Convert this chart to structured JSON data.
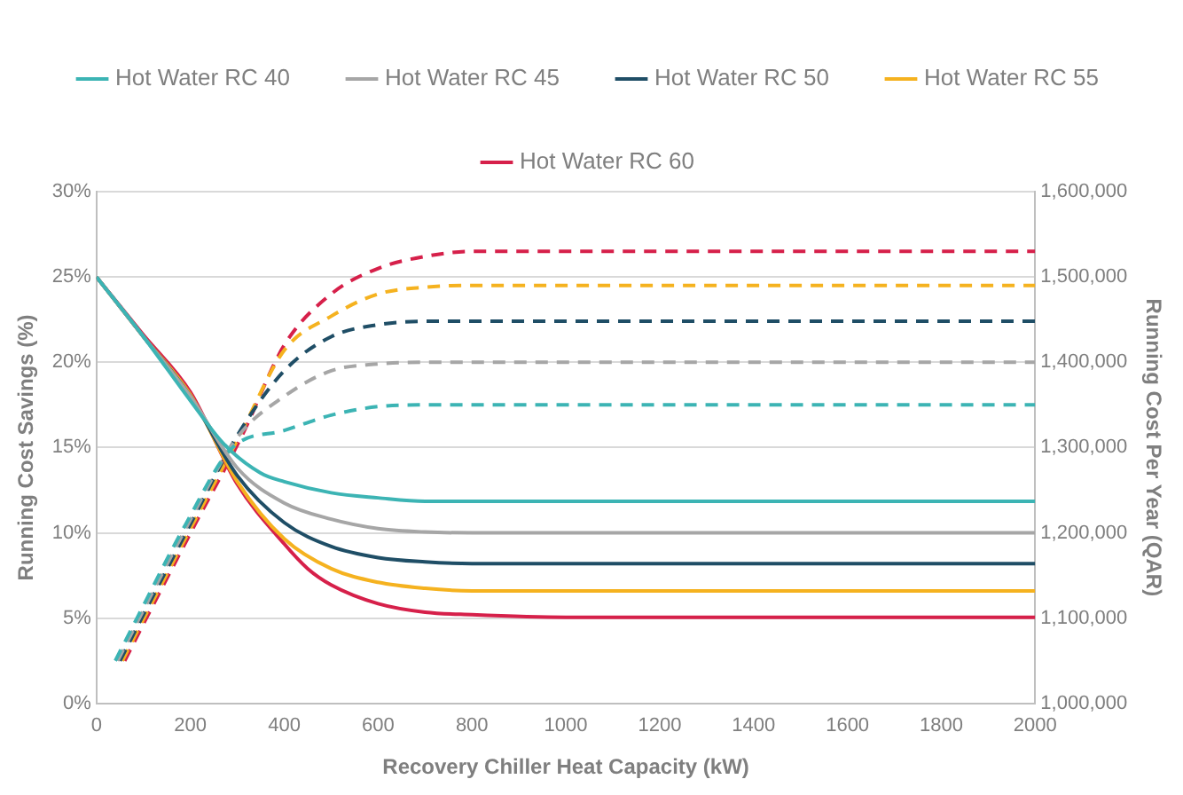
{
  "chart_data": {
    "type": "line",
    "xlabel": "Recovery Chiller Heat Capacity (kW)",
    "ylabel": "Running Cost Savings (%)",
    "y2label": "Running Cost Per Year (QAR)",
    "xlim": [
      0,
      2000
    ],
    "xticks": [
      0,
      200,
      400,
      600,
      800,
      1000,
      1200,
      1400,
      1600,
      1800,
      2000
    ],
    "ylim": [
      0,
      30
    ],
    "yticks": [
      {
        "value": 0,
        "label": "0%"
      },
      {
        "value": 5,
        "label": "5%"
      },
      {
        "value": 10,
        "label": "10%"
      },
      {
        "value": 15,
        "label": "15%"
      },
      {
        "value": 20,
        "label": "20%"
      },
      {
        "value": 25,
        "label": "25%"
      },
      {
        "value": 30,
        "label": "30%"
      }
    ],
    "y2lim": [
      1000000,
      1600000
    ],
    "y2ticks": [
      {
        "value": 1000000,
        "label": "1,000,000"
      },
      {
        "value": 1100000,
        "label": "1,100,000"
      },
      {
        "value": 1200000,
        "label": "1,200,000"
      },
      {
        "value": 1300000,
        "label": "1,300,000"
      },
      {
        "value": 1400000,
        "label": "1,400,000"
      },
      {
        "value": 1500000,
        "label": "1,500,000"
      },
      {
        "value": 1600000,
        "label": "1,600,000"
      }
    ],
    "grid": "y",
    "legend": "top",
    "marker": "none",
    "series": [
      {
        "name": "Hot Water RC 40",
        "color": "#3cb4b4",
        "axis": "y2",
        "line_style": "solid",
        "x": [
          0,
          100,
          200,
          270,
          350,
          400,
          500,
          600,
          700,
          2000
        ],
        "values": [
          1500000,
          1430000,
          1355000,
          1305000,
          1270000,
          1260000,
          1247000,
          1241000,
          1237000,
          1237000
        ]
      },
      {
        "name": "Hot Water RC 45",
        "color": "#a6a6a6",
        "axis": "y2",
        "line_style": "solid",
        "x": [
          0,
          100,
          200,
          300,
          400,
          500,
          600,
          700,
          800,
          2000
        ],
        "values": [
          1500000,
          1430000,
          1360000,
          1276000,
          1235000,
          1216000,
          1205000,
          1201000,
          1200000,
          1200000
        ]
      },
      {
        "name": "Hot Water RC 50",
        "color": "#1f4e66",
        "axis": "y2",
        "line_style": "solid",
        "x": [
          0,
          100,
          200,
          300,
          400,
          500,
          600,
          700,
          800,
          2000
        ],
        "values": [
          1500000,
          1430000,
          1360000,
          1267000,
          1212000,
          1184000,
          1171000,
          1166000,
          1164000,
          1164000
        ]
      },
      {
        "name": "Hot Water RC 55",
        "color": "#f5b21f",
        "axis": "y2",
        "line_style": "solid",
        "x": [
          0,
          100,
          200,
          300,
          400,
          500,
          600,
          700,
          800,
          2000
        ],
        "values": [
          1500000,
          1430000,
          1362000,
          1260000,
          1193000,
          1158000,
          1142000,
          1135000,
          1132000,
          1132000
        ]
      },
      {
        "name": "Hot Water RC 60",
        "color": "#d6204a",
        "axis": "y2",
        "line_style": "solid",
        "x": [
          0,
          100,
          200,
          300,
          400,
          450,
          500,
          600,
          700,
          800,
          1000,
          2000
        ],
        "values": [
          1500000,
          1432000,
          1365000,
          1257000,
          1187000,
          1158000,
          1139000,
          1117000,
          1107000,
          1104000,
          1101000,
          1101000
        ]
      },
      {
        "color": "#3cb4b4",
        "axis": "y",
        "line_style": "dashed",
        "x": [
          40,
          90,
          190,
          290,
          400,
          500,
          600,
          700,
          2000
        ],
        "values": [
          2.5,
          5.2,
          10.5,
          15.0,
          16.0,
          16.9,
          17.4,
          17.5,
          17.5
        ]
      },
      {
        "color": "#a6a6a6",
        "axis": "y",
        "line_style": "dashed",
        "x": [
          45,
          95,
          195,
          300,
          400,
          500,
          600,
          700,
          2000
        ],
        "values": [
          2.5,
          5.2,
          10.5,
          15.6,
          18.0,
          19.5,
          19.9,
          20.0,
          20.0
        ]
      },
      {
        "color": "#1f4e66",
        "axis": "y",
        "line_style": "dashed",
        "x": [
          50,
          100,
          200,
          300,
          400,
          500,
          600,
          700,
          2000
        ],
        "values": [
          2.5,
          5.2,
          10.5,
          15.7,
          19.5,
          21.5,
          22.2,
          22.4,
          22.4
        ]
      },
      {
        "color": "#f5b21f",
        "axis": "y",
        "line_style": "dashed",
        "x": [
          55,
          105,
          205,
          305,
          400,
          500,
          600,
          700,
          800,
          2000
        ],
        "values": [
          2.5,
          5.2,
          10.5,
          15.7,
          20.7,
          22.7,
          24.0,
          24.4,
          24.5,
          24.5
        ]
      },
      {
        "color": "#d6204a",
        "axis": "y",
        "line_style": "dashed",
        "x": [
          60,
          110,
          210,
          310,
          400,
          500,
          600,
          700,
          800,
          2000
        ],
        "values": [
          2.5,
          5.2,
          10.5,
          15.7,
          21.0,
          24.0,
          25.5,
          26.2,
          26.5,
          26.5
        ]
      }
    ]
  }
}
